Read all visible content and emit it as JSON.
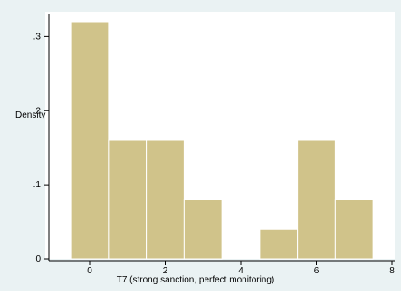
{
  "chart_data": {
    "type": "bar",
    "title": "",
    "xlabel": "T7 (strong sanction, perfect monitoring)",
    "ylabel": "Density",
    "bin_width": 1,
    "bins": [
      {
        "x0": -0.5,
        "x1": 0.5,
        "value": 0.32
      },
      {
        "x0": 0.5,
        "x1": 1.5,
        "value": 0.16
      },
      {
        "x0": 1.5,
        "x1": 2.5,
        "value": 0.16
      },
      {
        "x0": 2.5,
        "x1": 3.5,
        "value": 0.08
      },
      {
        "x0": 4.5,
        "x1": 5.5,
        "value": 0.04
      },
      {
        "x0": 5.5,
        "x1": 6.5,
        "value": 0.16
      },
      {
        "x0": 6.5,
        "x1": 7.5,
        "value": 0.08
      }
    ],
    "xlim": [
      -1.2,
      8.2
    ],
    "ylim": [
      0,
      0.33
    ],
    "x_ticks": [
      0,
      2,
      4,
      6,
      8
    ],
    "x_tick_labels": [
      "0",
      "2",
      "4",
      "6",
      "8"
    ],
    "y_ticks": [
      0,
      0.1,
      0.2,
      0.3
    ],
    "y_tick_labels": [
      "0",
      ".1",
      ".2",
      ".3"
    ],
    "grid": false,
    "colors": {
      "outer_background": "#eaf2f3",
      "plot_background": "#ffffff",
      "bar_fill": "#d0c38a",
      "bar_stroke": "#ffffff",
      "axis": "#000000"
    }
  }
}
